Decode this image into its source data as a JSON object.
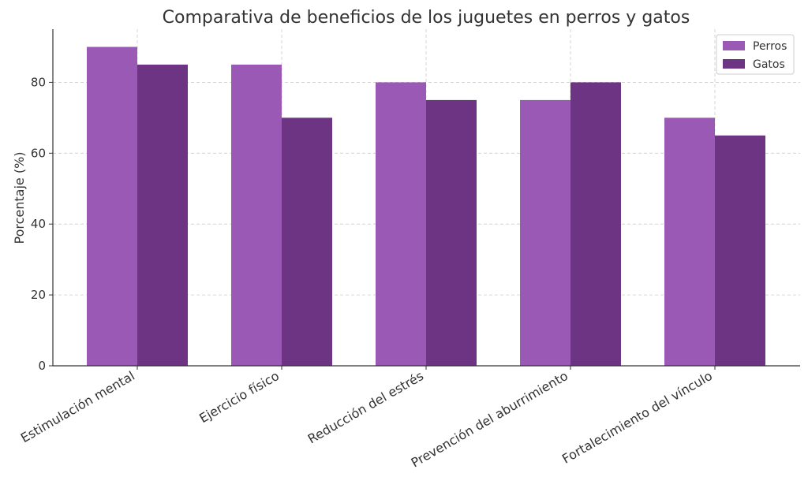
{
  "chart_data": {
    "type": "bar",
    "title": "Comparativa de beneficios de los juguetes en perros y gatos",
    "xlabel": "",
    "ylabel": "Porcentaje (%)",
    "ylim": [
      0,
      95
    ],
    "yticks": [
      0,
      20,
      40,
      60,
      80
    ],
    "grid": true,
    "legend_position": "top-right",
    "categories": [
      "Estimulación mental",
      "Ejercicio físico",
      "Reducción del estrés",
      "Prevención del aburrimiento",
      "Fortalecimiento del vínculo"
    ],
    "series": [
      {
        "name": "Perros",
        "color": "#9b59b6",
        "values": [
          90,
          85,
          80,
          75,
          70
        ]
      },
      {
        "name": "Gatos",
        "color": "#6c3483",
        "values": [
          85,
          70,
          75,
          80,
          65
        ]
      }
    ]
  }
}
